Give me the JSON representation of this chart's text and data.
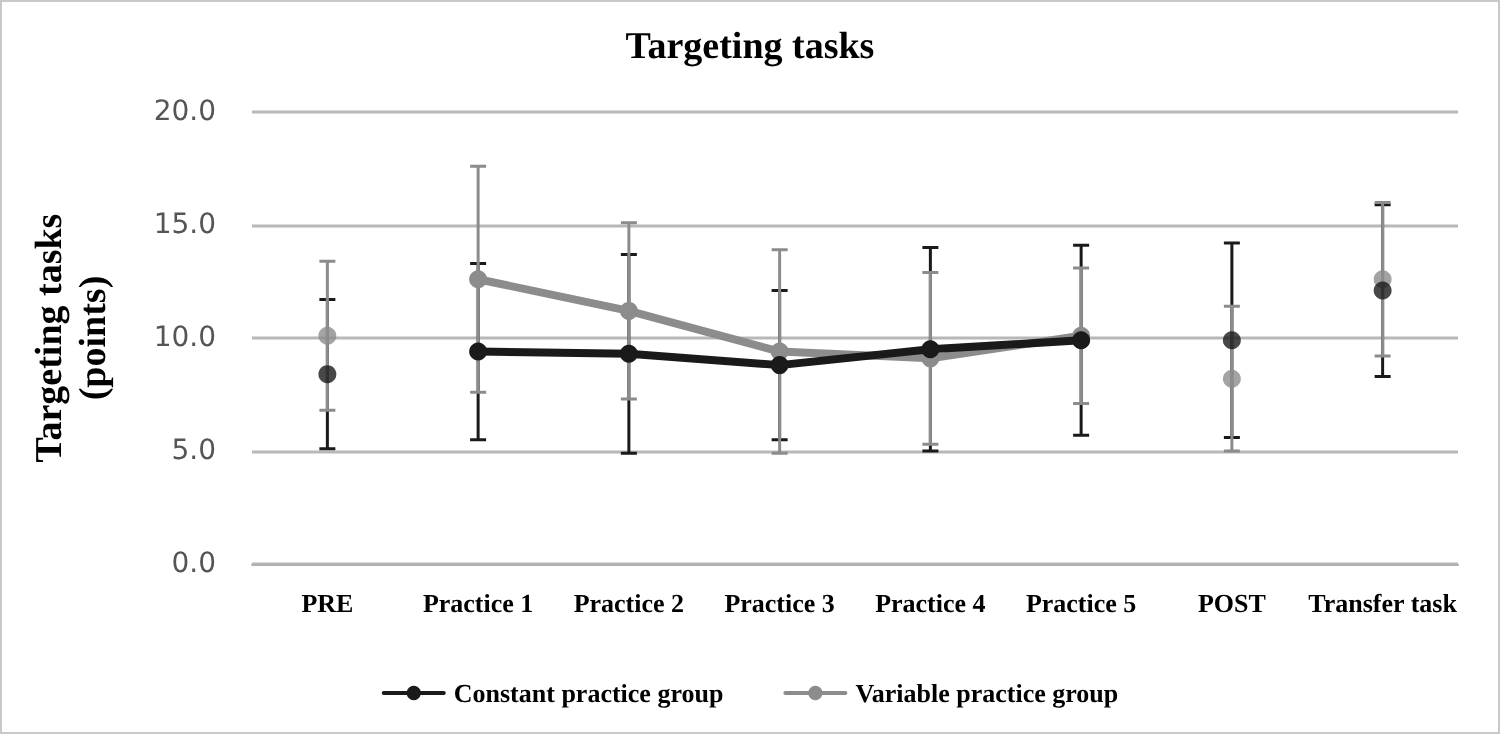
{
  "chart_data": {
    "type": "line",
    "title": "Targeting tasks",
    "ylabel": "Targeting tasks\n(points)",
    "categories": [
      "PRE",
      "Practice 1",
      "Practice 2",
      "Practice 3",
      "Practice 4",
      "Practice 5",
      "POST",
      "Transfer task"
    ],
    "series": [
      {
        "name": "Constant practice group",
        "color": "#1a1a1a",
        "values": [
          null,
          9.4,
          9.3,
          8.8,
          9.5,
          9.9,
          null,
          null
        ],
        "errors": [
          null,
          3.9,
          4.4,
          3.3,
          4.5,
          4.2,
          null,
          null
        ]
      },
      {
        "name": "Variable practice group",
        "color": "#8c8c8c",
        "values": [
          null,
          12.6,
          11.2,
          9.4,
          9.1,
          10.1,
          null,
          null
        ],
        "errors": [
          null,
          5.0,
          3.9,
          4.5,
          3.8,
          3.0,
          null,
          null
        ]
      },
      {
        "color": "#1a1a1a",
        "type": "scatter",
        "values": [
          8.4,
          null,
          null,
          null,
          null,
          null,
          9.9,
          12.1
        ],
        "errors": [
          3.3,
          null,
          null,
          null,
          null,
          null,
          4.3,
          3.8
        ]
      },
      {
        "color": "#8c8c8c",
        "type": "scatter",
        "values": [
          10.1,
          null,
          null,
          null,
          null,
          null,
          8.2,
          12.6
        ],
        "errors": [
          3.3,
          null,
          null,
          null,
          null,
          null,
          3.2,
          3.4
        ]
      }
    ],
    "ylim": [
      0,
      20
    ],
    "yticks": [
      {
        "value": 0,
        "label": "0.0"
      },
      {
        "value": 5,
        "label": "5.0"
      },
      {
        "value": 10,
        "label": "10.0"
      },
      {
        "value": 15,
        "label": "15.0"
      },
      {
        "value": 20,
        "label": "20.0"
      }
    ],
    "grid": "y",
    "legend": "bottom",
    "marker": "circle",
    "line_style": "solid"
  }
}
